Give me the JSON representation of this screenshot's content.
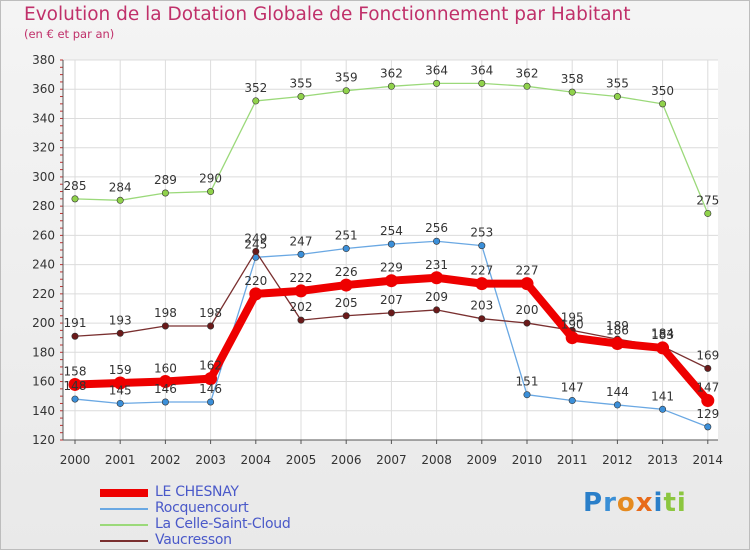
{
  "title": "Evolution de la Dotation Globale de Fonctionnement par Habitant",
  "subtitle": "(en € et par an)",
  "logo_text": "Proxiti",
  "chart_data": {
    "type": "line",
    "title": "Evolution de la Dotation Globale de Fonctionnement par Habitant",
    "subtitle": "(en € et par an)",
    "xlabel": "",
    "ylabel": "",
    "ylim": [
      120,
      380
    ],
    "yticks": [
      120,
      140,
      160,
      180,
      200,
      220,
      240,
      260,
      280,
      300,
      320,
      340,
      360,
      380
    ],
    "grid": true,
    "legend_position": "bottom-left",
    "categories": [
      "2000",
      "2001",
      "2002",
      "2003",
      "2004",
      "2005",
      "2006",
      "2007",
      "2008",
      "2009",
      "2010",
      "2011",
      "2012",
      "2013",
      "2014"
    ],
    "series": [
      {
        "name": "La Celle-Saint-Cloud",
        "color": "#90d24b",
        "line_color": "#9bd97a",
        "emphasis": false,
        "values": [
          285,
          284,
          289,
          290,
          352,
          355,
          359,
          362,
          364,
          364,
          362,
          358,
          355,
          350,
          275
        ]
      },
      {
        "name": "Rocquencourt",
        "color": "#3b8fd9",
        "line_color": "#6aa8e3",
        "emphasis": false,
        "values": [
          148,
          145,
          146,
          146,
          245,
          247,
          251,
          254,
          256,
          253,
          151,
          147,
          144,
          141,
          129
        ]
      },
      {
        "name": "Vaucresson",
        "color": "#6b1a1a",
        "line_color": "#7a3030",
        "emphasis": false,
        "values": [
          191,
          193,
          198,
          198,
          249,
          202,
          205,
          207,
          209,
          203,
          200,
          195,
          189,
          184,
          169
        ]
      },
      {
        "name": "LE CHESNAY",
        "color": "#ee0000",
        "line_color": "#ee0000",
        "emphasis": true,
        "values": [
          158,
          159,
          160,
          162,
          220,
          222,
          226,
          229,
          231,
          227,
          227,
          190,
          186,
          183,
          147
        ]
      }
    ],
    "legend": [
      "LE CHESNAY",
      "Rocquencourt",
      "La Celle-Saint-Cloud",
      "Vaucresson"
    ]
  }
}
